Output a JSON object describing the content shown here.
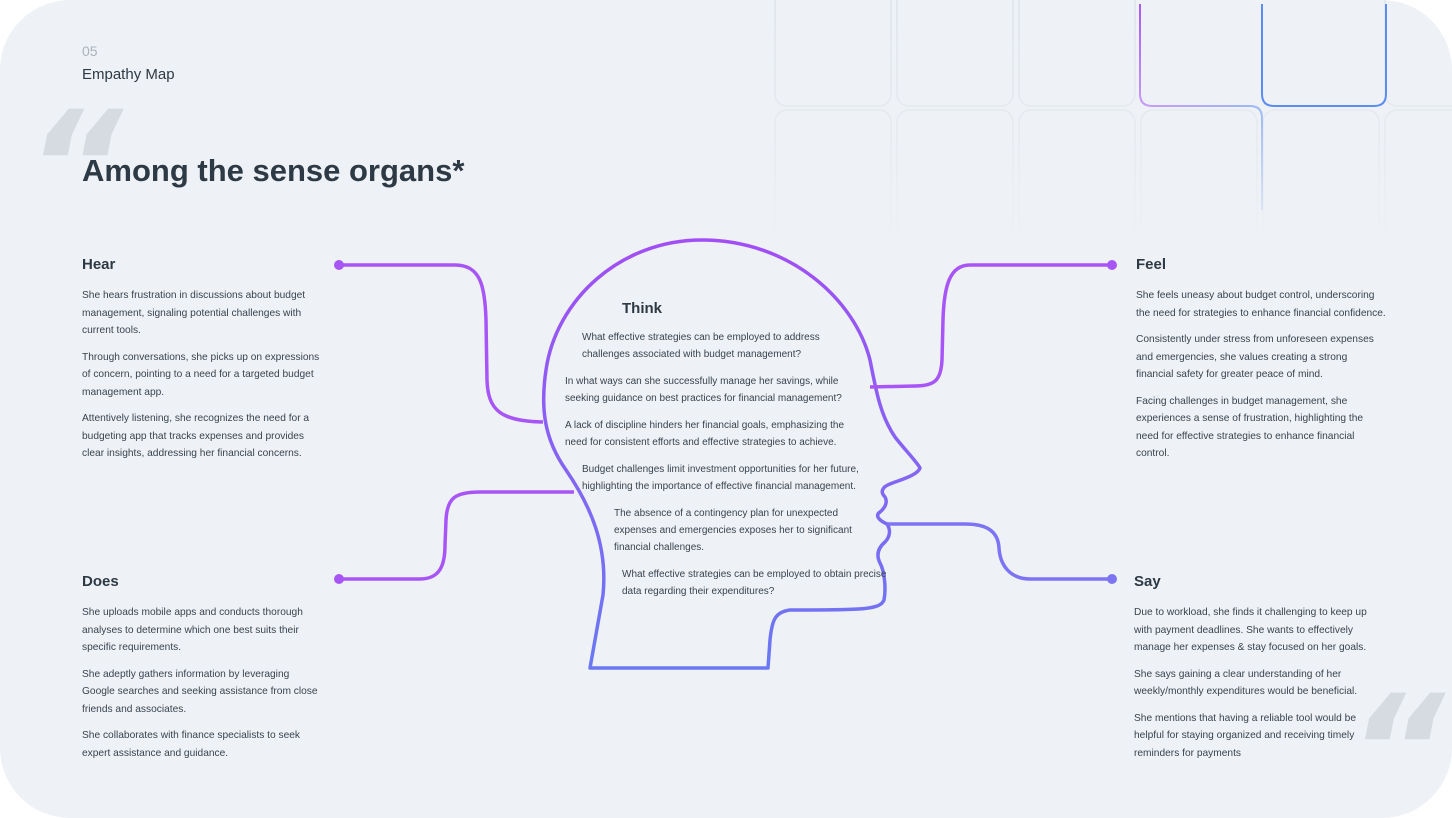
{
  "header": {
    "section_number": "05",
    "section_name": "Empathy Map",
    "title": "Among the sense organs*",
    "quote_mark": "“"
  },
  "colors": {
    "background": "#eef1f5",
    "connector_start": "#a855f7",
    "connector_end": "#6d7ff5",
    "text_dark": "#2d3a45"
  },
  "hear": {
    "title": "Hear",
    "items": [
      "She hears frustration in discussions about budget management, signaling potential challenges with current tools.",
      "Through conversations, she picks up on expressions of concern, pointing to a need for a targeted budget management app.",
      "Attentively listening, she recognizes the need for a budgeting app that tracks expenses and provides clear insights, addressing her financial concerns."
    ]
  },
  "does": {
    "title": "Does",
    "items": [
      "She uploads mobile apps and conducts thorough analyses to determine which one best suits their specific requirements.",
      "She adeptly gathers information by leveraging Google searches and seeking assistance from close friends and associates.",
      "She collaborates with finance specialists to seek expert assistance and guidance."
    ]
  },
  "think": {
    "title": "Think",
    "items": [
      "What effective strategies can be employed to address challenges associated with budget management?",
      "In what ways can she successfully manage her savings, while seeking guidance on best practices for financial management?",
      "A lack of discipline hinders her financial goals, emphasizing the need for consistent efforts and effective strategies to achieve.",
      "Budget challenges limit investment opportunities for her future, highlighting the importance of effective financial management.",
      "The absence of a contingency plan for unexpected expenses and emergencies exposes her to significant financial challenges.",
      "What effective strategies can be employed to obtain precise data regarding their expenditures?"
    ]
  },
  "feel": {
    "title": "Feel",
    "items": [
      "She feels uneasy about budget control, underscoring the need for strategies to enhance financial confidence.",
      "Consistently under stress from unforeseen expenses and emergencies, she values creating a strong financial safety for greater peace of mind.",
      "Facing challenges in budget management, she experiences a sense of frustration, highlighting the need for effective strategies to enhance financial control."
    ]
  },
  "say": {
    "title": "Say",
    "items": [
      "Due to workload, she finds it challenging to keep up with payment deadlines. She wants to effectively manage her expenses & stay focused on her goals.",
      "She says gaining a clear understanding of her weekly/monthly expenditures would be beneficial.",
      "She mentions that having a reliable tool would be helpful for staying organized and receiving timely reminders for payments"
    ]
  }
}
